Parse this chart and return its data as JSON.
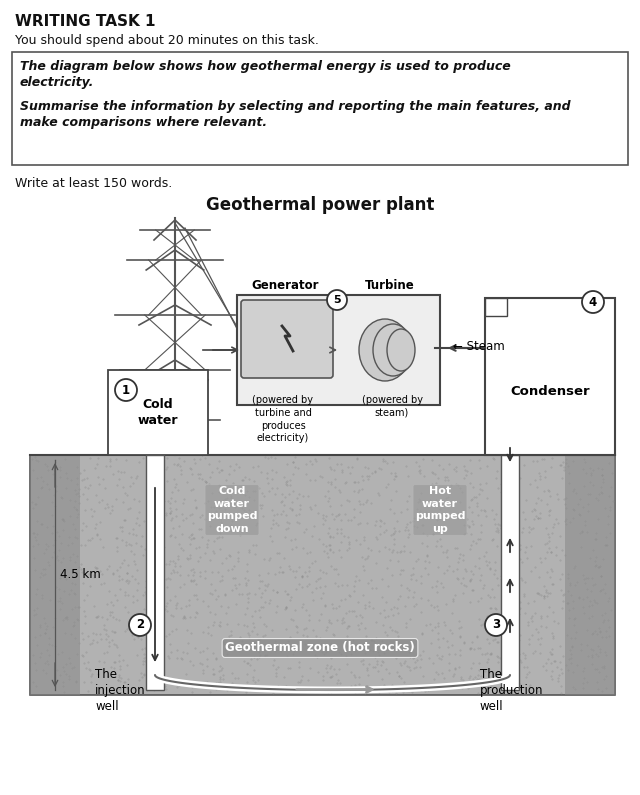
{
  "title": "Geothermal power plant",
  "header_title": "WRITING TASK 1",
  "header_line1": "You should spend about 20 minutes on this task.",
  "box_line1": "The diagram below shows how geothermal energy is used to produce",
  "box_line2": "electricity.",
  "box_line3": "Summarise the information by selecting and reporting the main features, and",
  "box_line4": "make comparisons where relevant.",
  "footer_line": "Write at least 150 words.",
  "bg_color": "#ffffff",
  "ground_fill": "#aaaaaa",
  "text_color": "#111111",
  "edge_color": "#444444"
}
